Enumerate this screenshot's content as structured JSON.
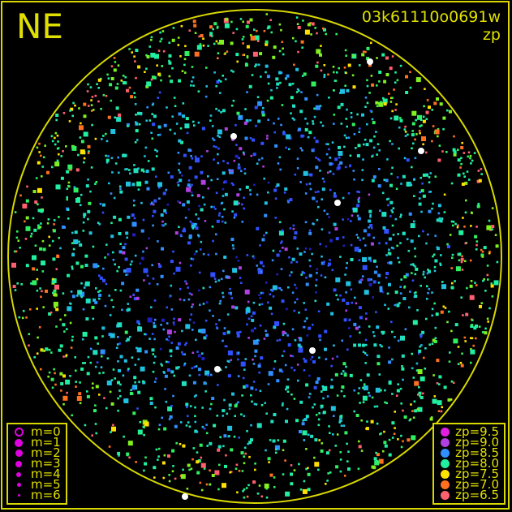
{
  "direction_label": "NE",
  "frame_id": "03k61110o0691w",
  "color_mode": "zp",
  "colors": {
    "frame": "#d8d800",
    "text": "#e0e000",
    "background": "#000000",
    "magnitude_symbol": "#e000e0"
  },
  "magnitude_legend": [
    {
      "label": "m=0",
      "style": "ring"
    },
    {
      "label": "m=1"
    },
    {
      "label": "m=2"
    },
    {
      "label": "m=3"
    },
    {
      "label": "m=4"
    },
    {
      "label": "m=5"
    },
    {
      "label": "m=6"
    }
  ],
  "zp_legend": [
    {
      "label": "zp=9.5",
      "color": "#e020e0"
    },
    {
      "label": "zp=9.0",
      "color": "#b040e0"
    },
    {
      "label": "zp=8.5",
      "color": "#3090ff"
    },
    {
      "label": "zp=8.0",
      "color": "#20f0a0"
    },
    {
      "label": "zp=7.5",
      "color": "#ffe000"
    },
    {
      "label": "zp=7.0",
      "color": "#ff7020"
    },
    {
      "label": "zp=6.5",
      "color": "#ff6070"
    }
  ]
}
